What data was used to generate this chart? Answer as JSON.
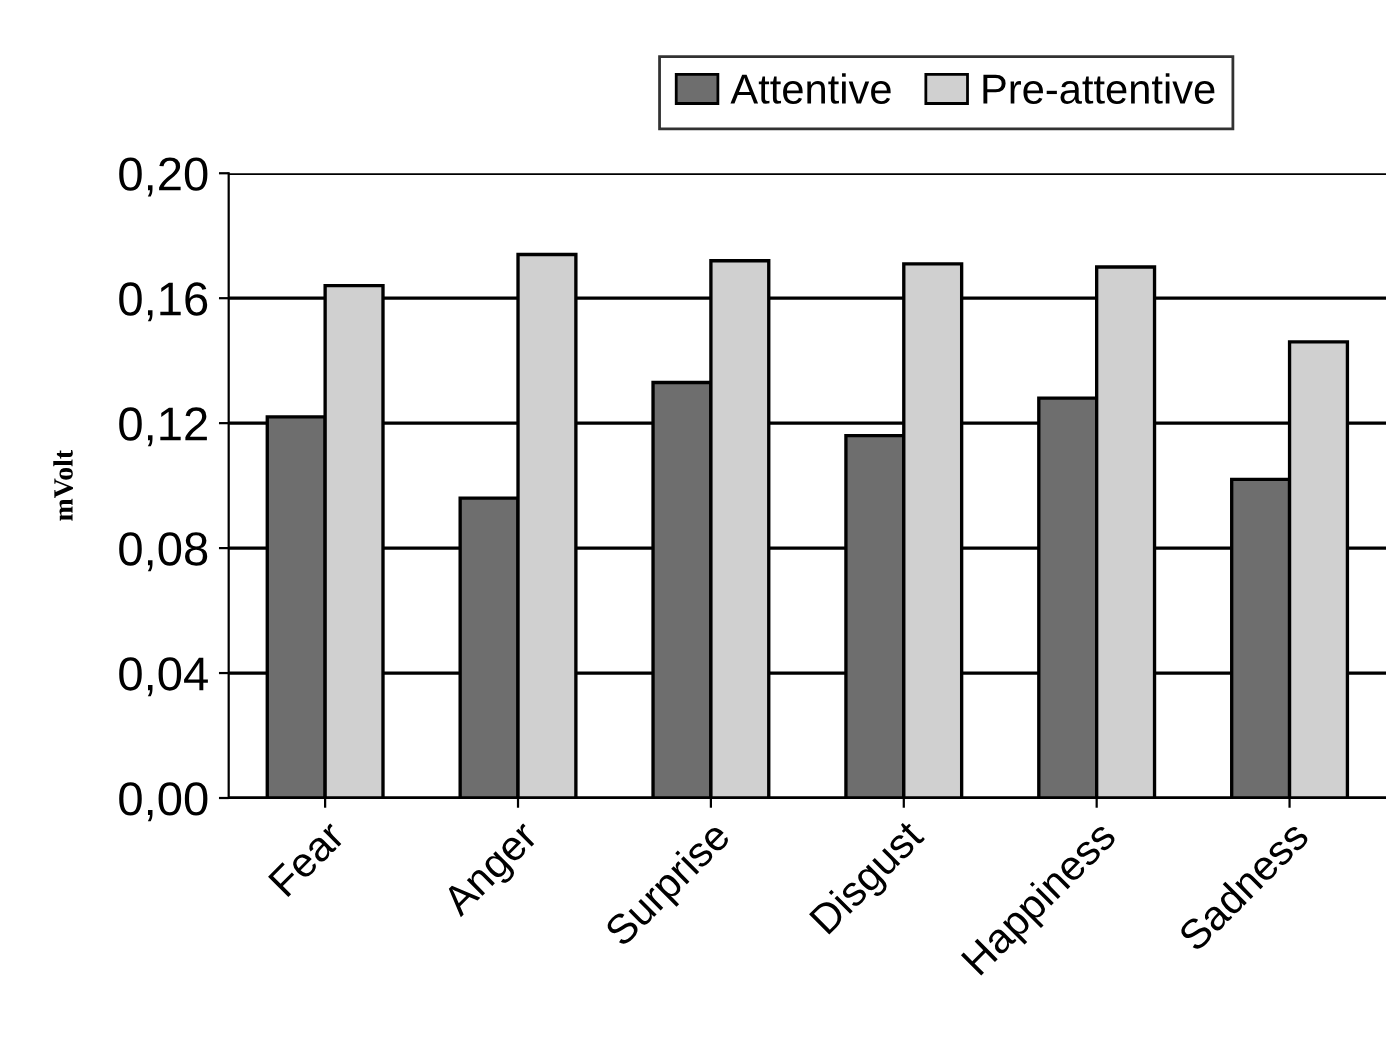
{
  "chart_data": {
    "type": "bar",
    "ylabel": "mVolt",
    "categories": [
      "Fear",
      "Anger",
      "Surprise",
      "Disgust",
      "Happiness",
      "Sadness"
    ],
    "series": [
      {
        "name": "Attentive",
        "color": "#6e6e6e",
        "values": [
          0.122,
          0.096,
          0.133,
          0.116,
          0.128,
          0.102
        ]
      },
      {
        "name": "Pre-attentive",
        "color": "#d0d0d0",
        "values": [
          0.164,
          0.174,
          0.172,
          0.171,
          0.17,
          0.146
        ]
      }
    ],
    "ylim": [
      0,
      0.2
    ],
    "yticks": [
      {
        "value": 0,
        "label": "0,00"
      },
      {
        "value": 0.04,
        "label": "0,04"
      },
      {
        "value": 0.08,
        "label": "0,08"
      },
      {
        "value": 0.12,
        "label": "0,12"
      },
      {
        "value": 0.16,
        "label": "0,16"
      },
      {
        "value": 0.2,
        "label": "0,20"
      }
    ],
    "grid": "y",
    "legend": "top"
  }
}
